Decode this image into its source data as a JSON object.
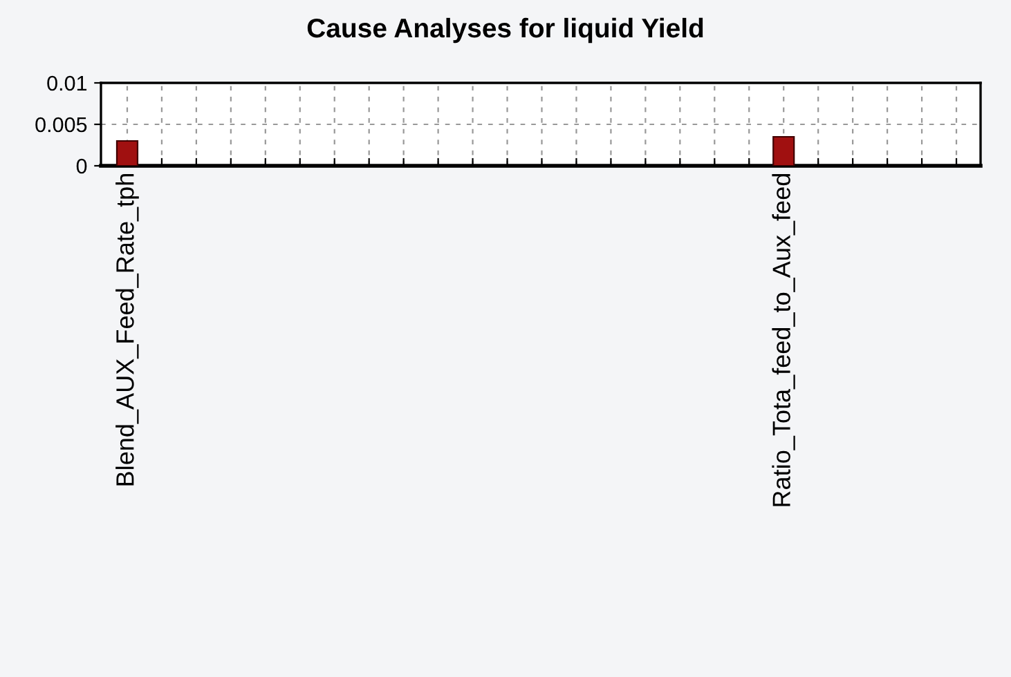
{
  "chart_data": {
    "type": "bar",
    "title": "Cause Analyses for liquid Yield",
    "categories": [
      "Blend_AUX_Feed_Rate_tph",
      null,
      null,
      null,
      null,
      null,
      null,
      null,
      null,
      null,
      null,
      null,
      null,
      null,
      null,
      null,
      null,
      null,
      null,
      "Ratio_Tota_feed_to_Aux_feed",
      null,
      null,
      null,
      null,
      null
    ],
    "values": [
      0.003,
      null,
      null,
      null,
      null,
      null,
      null,
      null,
      null,
      null,
      null,
      null,
      null,
      null,
      null,
      null,
      null,
      null,
      null,
      0.0035,
      null,
      null,
      null,
      null,
      null
    ],
    "color": "#a01010",
    "ylim": [
      0,
      0.01
    ],
    "yticks": [
      0,
      0.005,
      0.01
    ],
    "grid": true
  }
}
